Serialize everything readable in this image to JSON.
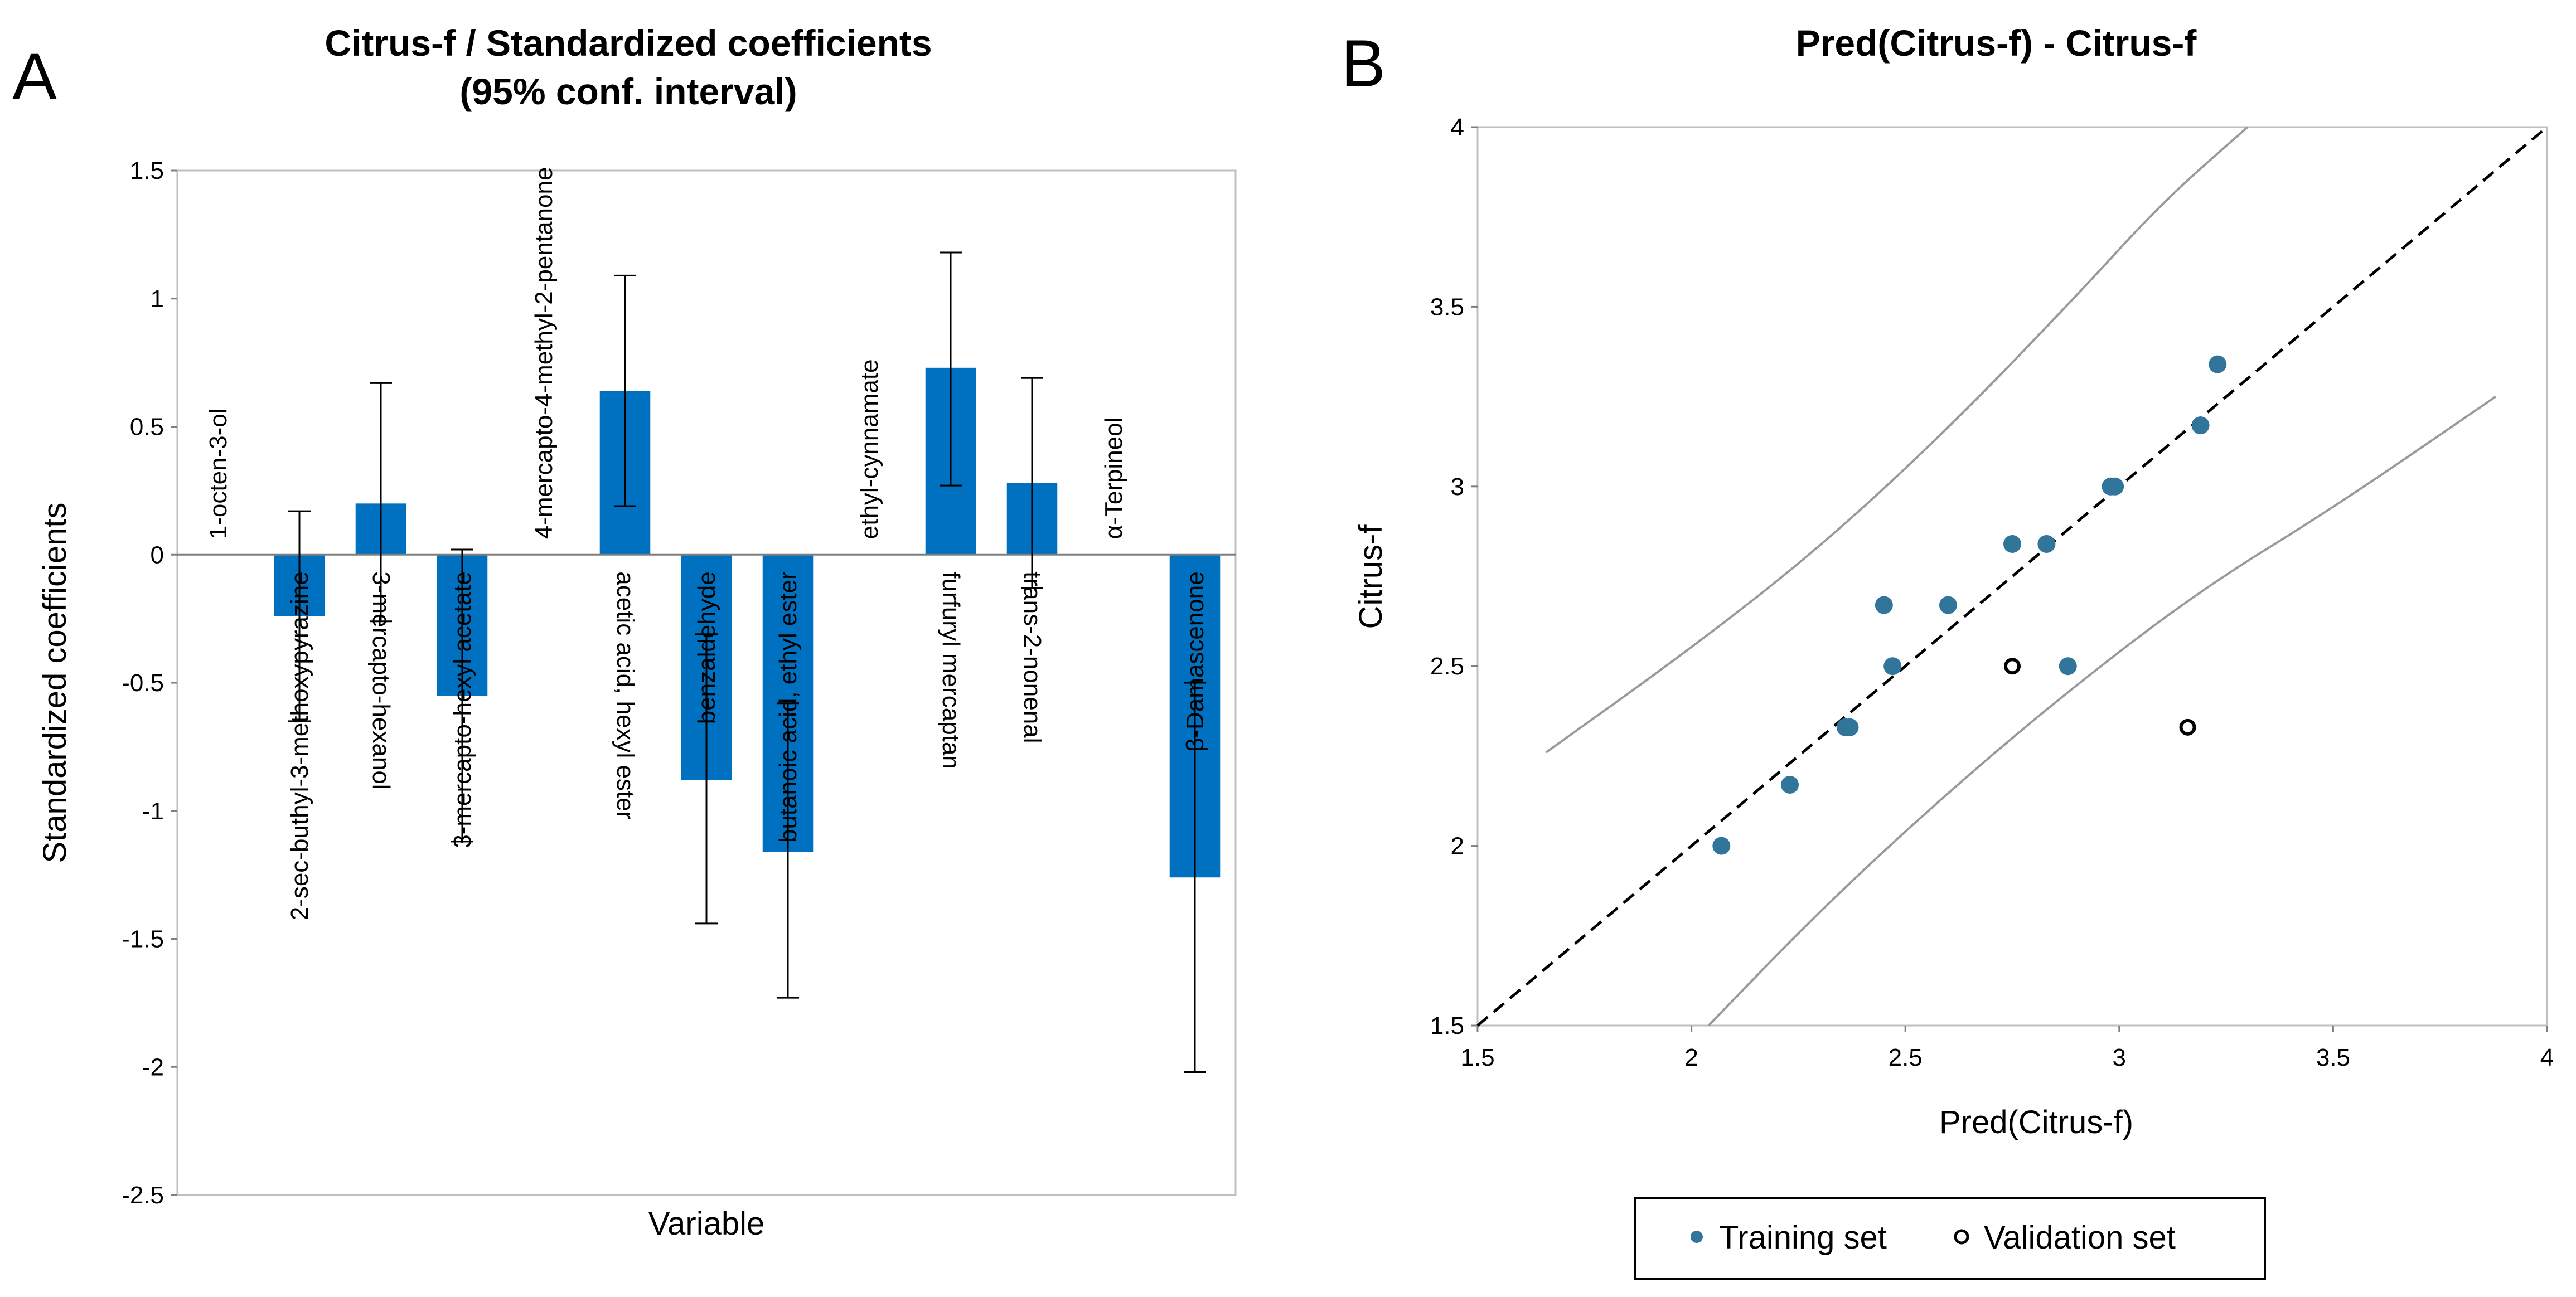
{
  "panel_a": {
    "letter": "A",
    "chart_data": {
      "type": "bar",
      "title": "Citrus-f / Standardized coefficients",
      "subtitle": "(95% conf. interval)",
      "xlabel": "Variable",
      "ylabel": "Standardized coefficients",
      "ylim": [
        -2.5,
        1.5
      ],
      "yticks": [
        1.5,
        1,
        0.5,
        0,
        -0.5,
        -1,
        -1.5,
        -2,
        -2.5
      ],
      "ytick_labels": [
        "1.5",
        "1",
        "0.5",
        "0",
        "-0.5",
        "-1",
        "-1.5",
        "-2",
        "-2.5"
      ],
      "categories": [
        "1-octen-3-ol",
        "2-sec-buthyl-3-methoxypyrazine",
        "3-mercapto-hexanol",
        "3-mercapto-hexyl acetate",
        "4-mercapto-4-methyl-2-pentanone",
        "acetic acid, hexyl ester",
        "benzaldehyde",
        "butanoic acid, ethyl ester",
        "ethyl-cynnamate",
        "furfuryl mercaptan",
        "trans-2-nonenal",
        "α-Terpineol",
        "β-Damascenone"
      ],
      "values": [
        0,
        -0.24,
        0.2,
        -0.55,
        0,
        0.64,
        -0.88,
        -1.16,
        0,
        0.73,
        0.28,
        0,
        -1.26
      ],
      "ci_lower": [
        null,
        -0.65,
        -0.26,
        -1.12,
        null,
        0.19,
        -1.44,
        -1.73,
        null,
        0.27,
        -0.13,
        null,
        -2.02
      ],
      "ci_upper": [
        null,
        0.17,
        0.67,
        0.02,
        null,
        1.09,
        -0.31,
        -0.58,
        null,
        1.18,
        0.69,
        null,
        -0.5
      ],
      "bar_color": "#0070C0",
      "grid": false
    }
  },
  "panel_b": {
    "letter": "B",
    "chart_data": {
      "type": "scatter",
      "title": "Pred(Citrus-f) - Citrus-f",
      "xlabel": "Pred(Citrus-f)",
      "ylabel": "Citrus-f",
      "xlim": [
        1.5,
        4
      ],
      "ylim": [
        1.5,
        4
      ],
      "xticks": [
        1.5,
        2,
        2.5,
        3,
        3.5,
        4
      ],
      "xtick_labels": [
        "1.5",
        "2",
        "2.5",
        "3",
        "3.5",
        "4"
      ],
      "yticks": [
        1.5,
        2,
        2.5,
        3,
        3.5,
        4
      ],
      "ytick_labels": [
        "1.5",
        "2",
        "2.5",
        "3",
        "3.5",
        "4"
      ],
      "series": [
        {
          "name": "Training set",
          "marker": "filled-circle",
          "color": "#31759B",
          "points": [
            [
              2.07,
              2.0
            ],
            [
              2.23,
              2.17
            ],
            [
              2.36,
              2.33
            ],
            [
              2.37,
              2.33
            ],
            [
              2.45,
              2.67
            ],
            [
              2.47,
              2.5
            ],
            [
              2.6,
              2.67
            ],
            [
              2.75,
              2.84
            ],
            [
              2.83,
              2.84
            ],
            [
              2.88,
              2.5
            ],
            [
              2.98,
              3.0
            ],
            [
              2.99,
              3.0
            ],
            [
              3.19,
              3.17
            ],
            [
              3.23,
              3.34
            ]
          ]
        },
        {
          "name": "Validation set",
          "marker": "open-circle",
          "color": "#000000",
          "points": [
            [
              2.75,
              2.5
            ],
            [
              3.16,
              2.33
            ]
          ]
        }
      ],
      "reference_line": {
        "style": "dashed",
        "color": "#000000",
        "from": [
          1.5,
          1.5
        ],
        "to": [
          4,
          4
        ]
      },
      "confidence_bands": {
        "color": "#9A9A9A",
        "upper": [
          [
            1.66,
            2.26
          ],
          [
            2.0,
            2.55
          ],
          [
            2.3,
            2.83
          ],
          [
            2.6,
            3.16
          ],
          [
            2.9,
            3.53
          ],
          [
            3.1,
            3.79
          ],
          [
            3.3,
            4.0
          ]
        ],
        "lower": [
          [
            2.04,
            1.5
          ],
          [
            2.3,
            1.82
          ],
          [
            2.6,
            2.15
          ],
          [
            2.9,
            2.45
          ],
          [
            3.2,
            2.72
          ],
          [
            3.5,
            2.94
          ],
          [
            3.88,
            3.25
          ]
        ]
      },
      "legend": {
        "position": "bottom",
        "entries": [
          "Training set",
          "Validation set"
        ]
      },
      "grid": false
    }
  }
}
